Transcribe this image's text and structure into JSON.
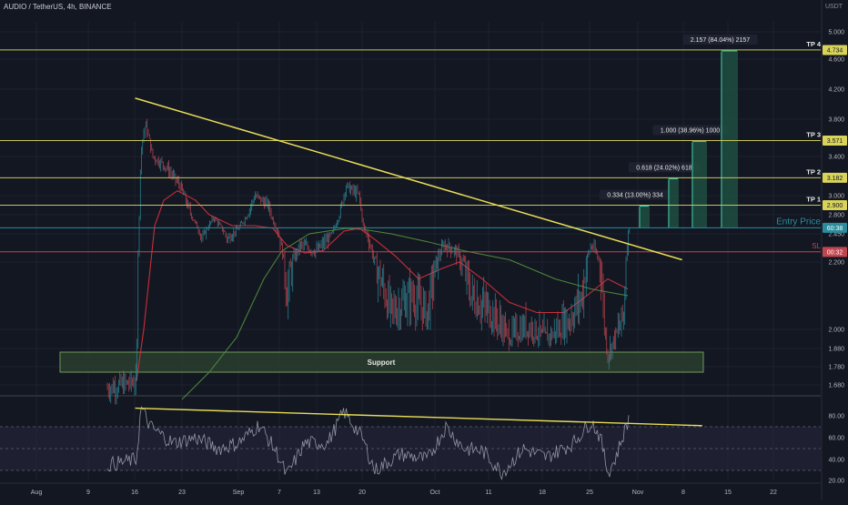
{
  "header": {
    "symbol": "AUDIO / TetherUS, 4h, BINANCE",
    "currency": "USDT"
  },
  "colors": {
    "background": "#131722",
    "grid": "#1e2230",
    "axis_text": "#b2b5be",
    "level_line": "#c7c45a",
    "entry_line": "#2a8c9c",
    "sl_line": "#c0454f",
    "trendline": "#e8dc56",
    "candle_up": "#2a8c9c",
    "candle_down": "#c0454f",
    "ma_fast": "#c62f3a",
    "ma_slow": "#4f8a3a",
    "support_fill": "#2a3d2e",
    "support_border": "#6f9a5a",
    "tp_fill": "#1f4d41",
    "rsi_line": "#8f95a3",
    "rsi_band": "#2a2640"
  },
  "chart_data": [
    {
      "type": "candlestick",
      "price_axis": {
        "ticks": [
          "5.000",
          "4.600",
          "4.200",
          "3.800",
          "3.400",
          "3.000",
          "2.800",
          "2.450",
          "2.200",
          "2.000",
          "1.880",
          "1.780",
          "1.680"
        ],
        "tick_values": [
          5.0,
          4.6,
          4.2,
          3.8,
          3.4,
          3.0,
          2.8,
          2.45,
          2.2,
          2.0,
          1.88,
          1.78,
          1.68
        ]
      },
      "time_axis": [
        "Aug",
        "9",
        "16",
        "23",
        "Sep",
        "7",
        "13",
        "20",
        "Oct",
        "11",
        "18",
        "25",
        "Nov",
        "8",
        "15",
        "22"
      ],
      "levels": [
        {
          "name": "TP 4",
          "price_label": "4.734",
          "value": 4.734
        },
        {
          "name": "TP 3",
          "price_label": "3.571",
          "value": 3.571
        },
        {
          "name": "TP 2",
          "price_label": "3.182",
          "value": 3.182
        },
        {
          "name": "TP 1",
          "price_label": "2.900",
          "value": 2.9
        },
        {
          "name": "Entry Price",
          "price_label": "60:38",
          "value": 2.56
        },
        {
          "name": "SL",
          "price_label": "00:32",
          "value": 2.29
        }
      ],
      "support_zone": {
        "label": "Support",
        "low": 1.75,
        "high": 1.86
      },
      "targets": [
        {
          "label": "0.334 (13.00%) 334",
          "target": 2.9
        },
        {
          "label": "0.618 (24.02%) 618",
          "target": 3.182
        },
        {
          "label": "1.000 (38.96%) 1000",
          "target": 3.571
        },
        {
          "label": "2.157 (84.04%) 2157",
          "target": 4.734
        }
      ],
      "trendline": {
        "from": {
          "date": "2021-08-16",
          "value": 4.08
        },
        "to": {
          "date": "2021-11-05",
          "value": 2.22
        }
      }
    },
    {
      "type": "line",
      "y_axis": {
        "ticks": [
          "80.00",
          "60.00",
          "40.00",
          "20.00"
        ],
        "tick_values": [
          80,
          60,
          40,
          20
        ]
      },
      "band": [
        30,
        70
      ],
      "trendline": {
        "from": {
          "date": "2021-08-16",
          "value": 87
        },
        "to": {
          "date": "2021-11-08",
          "value": 71
        }
      }
    }
  ]
}
